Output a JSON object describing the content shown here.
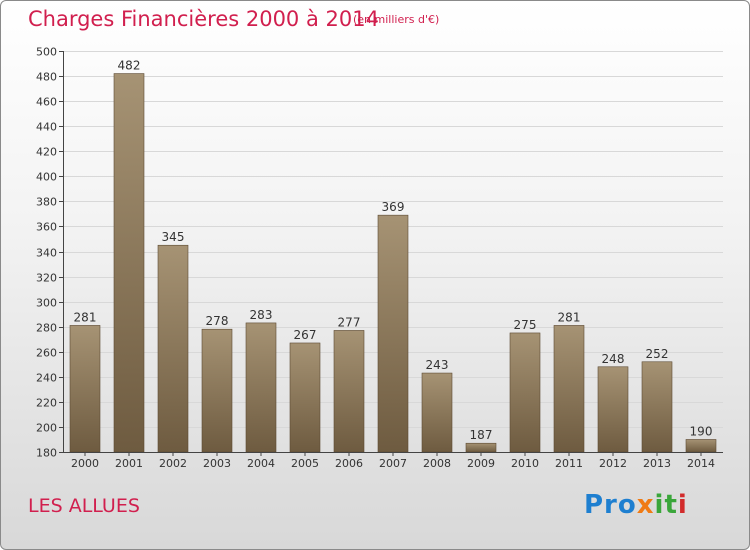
{
  "header": {
    "title": "Charges Financières 2000 à 2014",
    "subtitle": "(en milliers d'€)"
  },
  "footer": {
    "commune": "LES ALLUES",
    "logo_text": [
      "Pro",
      "x",
      "it",
      "i"
    ]
  },
  "colors": {
    "title": "#d11f4e",
    "bar_top": "#a69374",
    "bar_bottom": "#6e5b40"
  },
  "chart_data": {
    "type": "bar",
    "title": "Charges Financières 2000 à 2014",
    "subtitle": "(en milliers d'€)",
    "categories": [
      "2000",
      "2001",
      "2002",
      "2003",
      "2004",
      "2005",
      "2006",
      "2007",
      "2008",
      "2009",
      "2010",
      "2011",
      "2012",
      "2013",
      "2014"
    ],
    "values": [
      281,
      482,
      345,
      278,
      283,
      267,
      277,
      369,
      243,
      187,
      275,
      281,
      248,
      252,
      190
    ],
    "ylim": [
      180,
      500
    ],
    "yticks": [
      180,
      200,
      220,
      240,
      260,
      280,
      300,
      320,
      340,
      360,
      380,
      400,
      420,
      440,
      460,
      480,
      500
    ],
    "grid": true,
    "xlabel": "",
    "ylabel": ""
  }
}
